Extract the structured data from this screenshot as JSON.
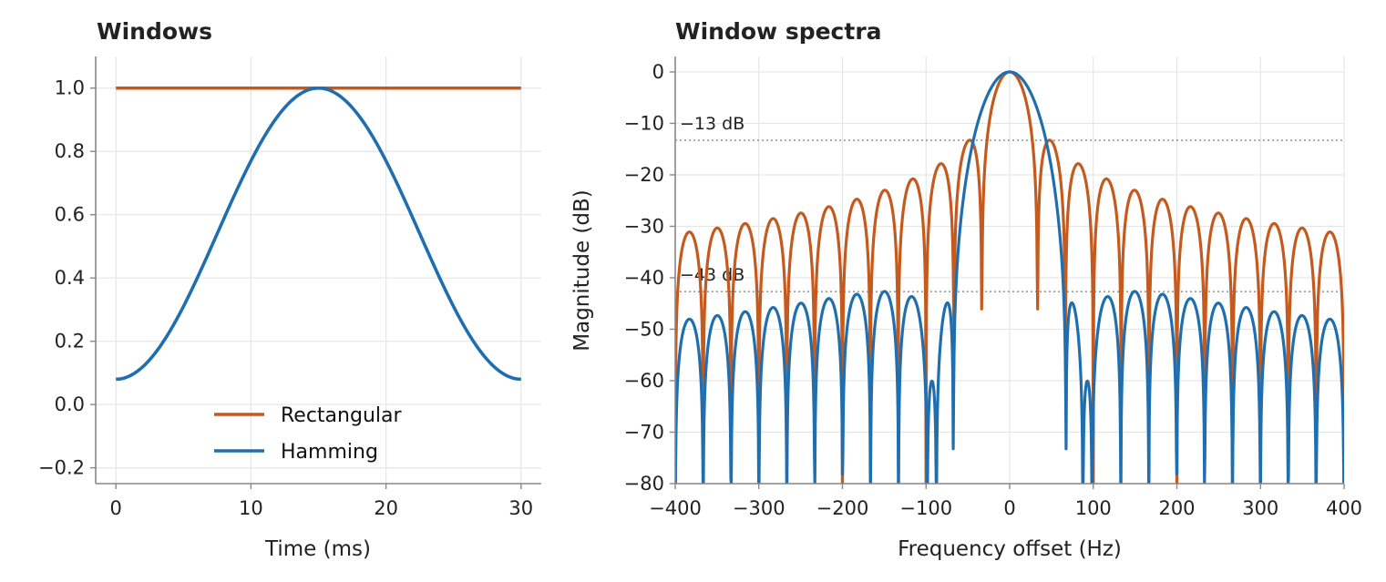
{
  "chart_data": [
    {
      "type": "line",
      "title": "Windows",
      "xlabel": "Time (ms)",
      "ylabel": "",
      "xlim": [
        -1.5,
        31.5
      ],
      "ylim": [
        -0.25,
        1.1
      ],
      "xticks": [
        0,
        10,
        20,
        30
      ],
      "yticks": [
        -0.2,
        0.0,
        0.2,
        0.4,
        0.6,
        0.8,
        1.0
      ],
      "xtick_labels": [
        "0",
        "10",
        "20",
        "30"
      ],
      "ytick_labels": [
        "−0.2",
        "0.0",
        "0.2",
        "0.4",
        "0.6",
        "0.8",
        "1.0"
      ],
      "grid": true,
      "legend": "bottom-center",
      "series": [
        {
          "name": "Rectangular",
          "color": "#c45a1d",
          "x": [
            0,
            30
          ],
          "y": [
            1.0,
            1.0
          ]
        },
        {
          "name": "Hamming",
          "color": "#1f6fb0",
          "x": [
            0,
            3,
            6,
            9,
            12,
            15,
            18,
            21,
            24,
            27,
            30
          ],
          "y": [
            0.08,
            0.168,
            0.398,
            0.682,
            0.912,
            1.0,
            0.912,
            0.682,
            0.398,
            0.168,
            0.08
          ]
        }
      ]
    },
    {
      "type": "line",
      "title": "Window spectra",
      "xlabel": "Frequency offset (Hz)",
      "ylabel": "Magnitude (dB)",
      "xlim": [
        -400,
        400
      ],
      "ylim": [
        -80,
        3
      ],
      "xticks": [
        -400,
        -300,
        -200,
        -100,
        0,
        100,
        200,
        300,
        400
      ],
      "yticks": [
        0,
        -10,
        -20,
        -30,
        -40,
        -50,
        -60,
        -70,
        -80
      ],
      "xtick_labels": [
        "−400",
        "−300",
        "−200",
        "−100",
        "0",
        "100",
        "200",
        "300",
        "400"
      ],
      "ytick_labels": [
        "0",
        "−10",
        "−20",
        "−30",
        "−40",
        "−50",
        "−60",
        "−70",
        "−80"
      ],
      "grid": true,
      "window_ms": 30,
      "series": [
        {
          "name": "Rectangular",
          "color": "#c45a1d",
          "window": "rectangular"
        },
        {
          "name": "Hamming",
          "color": "#1f6fb0",
          "window": "hamming"
        }
      ],
      "reference_lines": [
        {
          "y": -13.3,
          "label": "−13 dB",
          "color": "#888888"
        },
        {
          "y": -42.7,
          "label": "−43 dB",
          "color": "#888888"
        }
      ]
    }
  ]
}
